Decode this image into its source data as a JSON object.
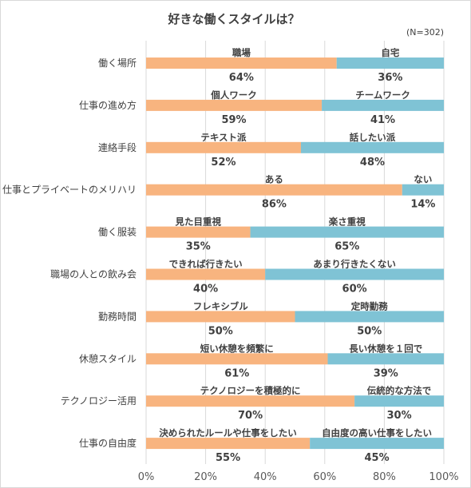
{
  "chart_data": {
    "type": "bar",
    "orientation": "horizontal",
    "stacked": true,
    "title": "好きな働くスタイルは？",
    "note": "(N=302)",
    "xlim": [
      0,
      100
    ],
    "x_ticks": [
      "0%",
      "20%",
      "40%",
      "60%",
      "80%",
      "100%"
    ],
    "grid": "vertical",
    "colors": {
      "left": "#f8b47f",
      "right": "#7fc3d5",
      "grid": "#d9d9d9"
    },
    "rows": [
      {
        "category": "働く場所",
        "left_label": "職場",
        "left_value": 64,
        "left_pct": "64%",
        "right_label": "自宅",
        "right_value": 36,
        "right_pct": "36%"
      },
      {
        "category": "仕事の進め方",
        "left_label": "個人ワーク",
        "left_value": 59,
        "left_pct": "59%",
        "right_label": "チームワーク",
        "right_value": 41,
        "right_pct": "41%"
      },
      {
        "category": "連絡手段",
        "left_label": "テキスト派",
        "left_value": 52,
        "left_pct": "52%",
        "right_label": "話したい派",
        "right_value": 48,
        "right_pct": "48%"
      },
      {
        "category": "仕事とプライベートのメリハリ",
        "left_label": "ある",
        "left_value": 86,
        "left_pct": "86%",
        "right_label": "ない",
        "right_value": 14,
        "right_pct": "14%"
      },
      {
        "category": "働く服装",
        "left_label": "見た目重視",
        "left_value": 35,
        "left_pct": "35%",
        "right_label": "楽さ重視",
        "right_value": 65,
        "right_pct": "65%"
      },
      {
        "category": "職場の人との飲み会",
        "left_label": "できれば行きたい",
        "left_value": 40,
        "left_pct": "40%",
        "right_label": "あまり行きたくない",
        "right_value": 60,
        "right_pct": "60%"
      },
      {
        "category": "勤務時間",
        "left_label": "フレキシブル",
        "left_value": 50,
        "left_pct": "50%",
        "right_label": "定時勤務",
        "right_value": 50,
        "right_pct": "50%"
      },
      {
        "category": "休憩スタイル",
        "left_label": "短い休憩を頻繁に",
        "left_value": 61,
        "left_pct": "61%",
        "right_label": "長い休憩を１回で",
        "right_value": 39,
        "right_pct": "39%"
      },
      {
        "category": "テクノロジー活用",
        "left_label": "テクノロジーを積極的に",
        "left_value": 70,
        "left_pct": "70%",
        "right_label": "伝統的な方法で",
        "right_value": 30,
        "right_pct": "30%"
      },
      {
        "category": "仕事の自由度",
        "left_label": "決められたルールや仕事をしたい",
        "left_value": 55,
        "left_pct": "55%",
        "right_label": "自由度の高い仕事をしたい",
        "right_value": 45,
        "right_pct": "45%"
      }
    ]
  }
}
